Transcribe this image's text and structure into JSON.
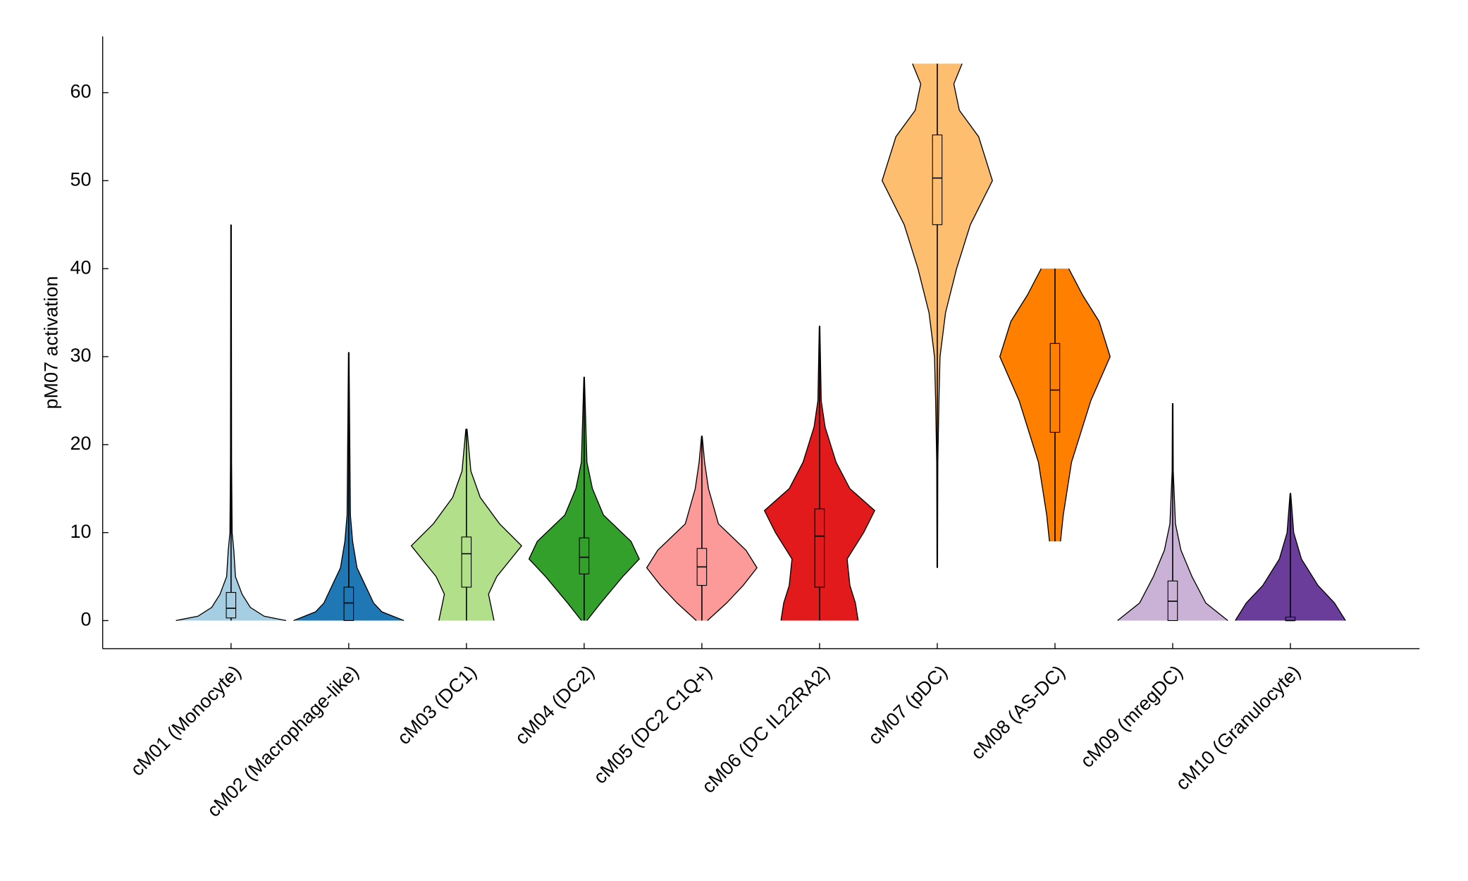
{
  "chart_data": {
    "type": "violin",
    "ylabel": "pM07 activation",
    "ylim": [
      -3.2,
      66.4
    ],
    "yticks": [
      0,
      10,
      20,
      30,
      40,
      50,
      60
    ],
    "categories": [
      "cM01 (Monocyte)",
      "cM02 (Macrophage-like)",
      "cM03 (DC1)",
      "cM04 (DC2)",
      "cM05 (DC2 C1Q+)",
      "cM06 (DC IL22RA2)",
      "cM07 (pDC)",
      "cM08 (AS-DC)",
      "cM09 (mregDC)",
      "cM10 (Granulocyte)"
    ],
    "series": [
      {
        "color": "#a6cee3",
        "min": 0,
        "q1": 0.3,
        "median": 1.4,
        "q3": 3.2,
        "max": 45,
        "density": {
          "y": [
            0,
            0.5,
            1.5,
            3,
            5,
            8,
            10,
            18,
            45
          ],
          "w": [
            1,
            0.6,
            0.35,
            0.2,
            0.08,
            0.05,
            0.02,
            0.01,
            0.005
          ]
        }
      },
      {
        "color": "#1f78b4",
        "min": 0,
        "q1": 0,
        "median": 2,
        "q3": 3.8,
        "max": 30.5,
        "density": {
          "y": [
            0,
            1,
            2,
            4,
            6,
            9,
            12,
            30.5
          ],
          "w": [
            1,
            0.6,
            0.45,
            0.3,
            0.15,
            0.07,
            0.03,
            0.005
          ]
        }
      },
      {
        "color": "#b2df8a",
        "min": 0,
        "q1": 3.8,
        "median": 7.6,
        "q3": 9.5,
        "max": 21.8,
        "density": {
          "y": [
            0,
            3,
            5,
            8.5,
            11,
            14,
            17,
            21.8
          ],
          "w": [
            0.5,
            0.4,
            0.55,
            1,
            0.6,
            0.25,
            0.08,
            0.01
          ]
        }
      },
      {
        "color": "#33a02c",
        "min": 0,
        "q1": 5.3,
        "median": 7.2,
        "q3": 9.4,
        "max": 27.7,
        "density": {
          "y": [
            0,
            2,
            5,
            7,
            9,
            12,
            15,
            18,
            27.7
          ],
          "w": [
            0.05,
            0.3,
            0.7,
            1,
            0.85,
            0.35,
            0.15,
            0.05,
            0.005
          ]
        }
      },
      {
        "color": "#fb9a99",
        "min": 0,
        "q1": 4,
        "median": 6.1,
        "q3": 8.2,
        "max": 21,
        "density": {
          "y": [
            0,
            2,
            4,
            6,
            8,
            11,
            15,
            18,
            21
          ],
          "w": [
            0.1,
            0.45,
            0.75,
            1,
            0.8,
            0.3,
            0.12,
            0.05,
            0.005
          ]
        }
      },
      {
        "color": "#e31a1c",
        "min": 0,
        "q1": 3.8,
        "median": 9.6,
        "q3": 12.7,
        "max": 33.5,
        "density": {
          "y": [
            0,
            2,
            4,
            7,
            10,
            12.5,
            15,
            18,
            22,
            25,
            33.5
          ],
          "w": [
            0.7,
            0.65,
            0.55,
            0.5,
            0.8,
            1,
            0.55,
            0.3,
            0.1,
            0.03,
            0.005
          ]
        }
      },
      {
        "color": "#fdbf6f",
        "min": 6,
        "q1": 45,
        "median": 50.3,
        "q3": 55.2,
        "max": 63.3,
        "density": {
          "y": [
            6,
            18,
            25,
            30,
            35,
            40,
            45,
            50,
            55,
            58,
            61,
            63.3
          ],
          "w": [
            0.005,
            0.01,
            0.03,
            0.05,
            0.15,
            0.35,
            0.6,
            1,
            0.75,
            0.4,
            0.3,
            0.45
          ]
        }
      },
      {
        "color": "#ff7f00",
        "min": 9,
        "q1": 21.4,
        "median": 26.2,
        "q3": 31.5,
        "max": 40,
        "density": {
          "y": [
            9,
            12,
            18,
            25,
            30,
            34,
            37,
            40
          ],
          "w": [
            0.1,
            0.15,
            0.3,
            0.65,
            1,
            0.8,
            0.5,
            0.25
          ]
        }
      },
      {
        "color": "#cab2d6",
        "min": 0,
        "q1": 0,
        "median": 2.2,
        "q3": 4.5,
        "max": 24.7,
        "density": {
          "y": [
            0,
            2,
            5,
            8,
            11,
            17,
            24.7
          ],
          "w": [
            1,
            0.6,
            0.35,
            0.15,
            0.05,
            0.01,
            0.005
          ]
        }
      },
      {
        "color": "#6a3d9a",
        "min": 0,
        "q1": 0,
        "median": 0,
        "q3": 0.4,
        "max": 14.5,
        "density": {
          "y": [
            0,
            2,
            4,
            7,
            10,
            14.5
          ],
          "w": [
            1,
            0.8,
            0.5,
            0.2,
            0.06,
            0.005
          ]
        }
      }
    ]
  }
}
